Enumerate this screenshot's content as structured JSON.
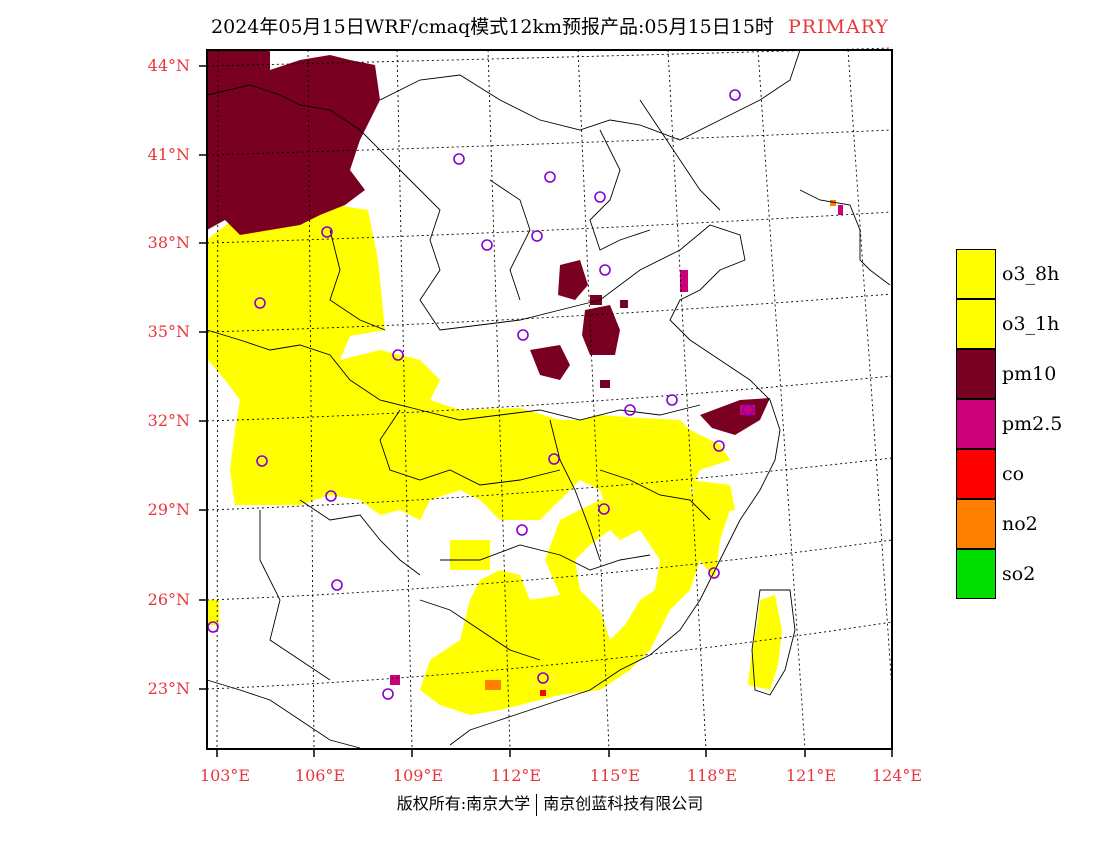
{
  "header": {
    "title": "2024年05月15日WRF/cmaq模式12km预报产品:05月15日15时",
    "tag": "PRIMARY",
    "tag_color": "#e8353a"
  },
  "axes": {
    "lat_labels": [
      "44°N",
      "41°N",
      "38°N",
      "35°N",
      "32°N",
      "29°N",
      "26°N",
      "23°N"
    ],
    "lon_labels": [
      "103°E",
      "106°E",
      "109°E",
      "112°E",
      "115°E",
      "118°E",
      "121°E",
      "124°E"
    ],
    "label_color": "#e8353a"
  },
  "legend": {
    "items": [
      {
        "label": "o3_8h",
        "color": "#ffff00"
      },
      {
        "label": "o3_1h",
        "color": "#ffff00"
      },
      {
        "label": "pm10",
        "color": "#7a0022"
      },
      {
        "label": "pm2.5",
        "color": "#cc0077"
      },
      {
        "label": "co",
        "color": "#ff0000"
      },
      {
        "label": "no2",
        "color": "#ff7f00"
      },
      {
        "label": "so2",
        "color": "#00dd00"
      }
    ]
  },
  "footer": {
    "left": "版权所有:南京大学",
    "right": "南京创蓝科技有限公司"
  }
}
